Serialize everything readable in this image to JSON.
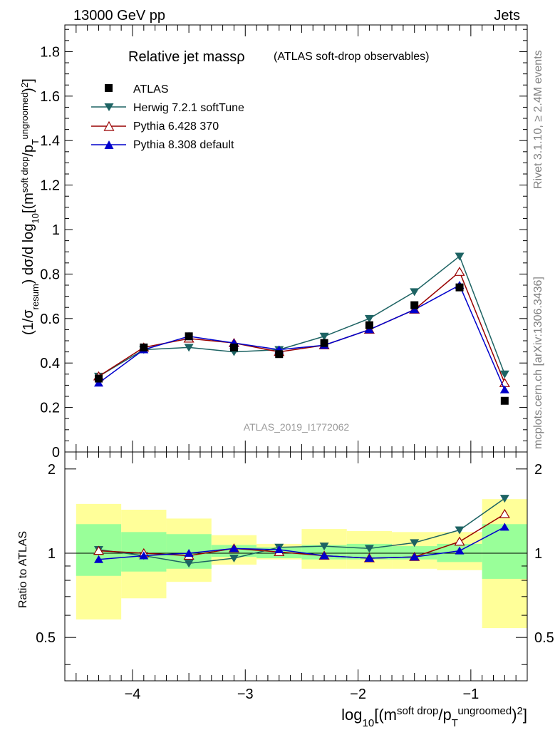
{
  "header": {
    "left": "13000 GeV pp",
    "right": "Jets"
  },
  "side_labels": {
    "rivet": "Rivet 3.1.10, ≥ 2.4M events",
    "mcplots": "mcplots.cern.ch [arXiv:1306.3436]"
  },
  "colors": {
    "atlas": "#000000",
    "herwig": "#1d6363",
    "pythia6": "#990000",
    "pythia8": "#0000cc",
    "band_inner": "#99ff99",
    "band_outer": "#ffff99"
  },
  "chart_data": [
    {
      "type": "line",
      "title": "Relative jet massρ",
      "subtitle": "(ATLAS soft-drop observables)",
      "watermark": "ATLAS_2019_I1772062",
      "ylabel": "(1/σresum) dσ/d log10[(m soft drop/pT ungroomed)2]",
      "xlim": [
        -4.6,
        -0.5
      ],
      "ylim": [
        0,
        1.92
      ],
      "yticks": [
        "0",
        "0.2",
        "0.4",
        "0.6",
        "0.8",
        "1",
        "1.2",
        "1.4",
        "1.6",
        "1.8"
      ],
      "legend_position": "top-left",
      "x": [
        -4.3,
        -3.9,
        -3.5,
        -3.1,
        -2.7,
        -2.3,
        -1.9,
        -1.5,
        -1.1,
        -0.7
      ],
      "series": [
        {
          "name": "ATLAS",
          "marker": "square",
          "values": [
            0.33,
            0.47,
            0.52,
            0.47,
            0.44,
            0.49,
            0.57,
            0.66,
            0.74,
            0.23
          ]
        },
        {
          "name": "Herwig 7.2.1 softTune",
          "marker": "triangle-down",
          "values": [
            0.34,
            0.46,
            0.47,
            0.45,
            0.46,
            0.52,
            0.6,
            0.72,
            0.88,
            0.35
          ]
        },
        {
          "name": "Pythia 6.428 370",
          "marker": "triangle-up-open",
          "values": [
            0.34,
            0.47,
            0.51,
            0.49,
            0.45,
            0.48,
            0.55,
            0.64,
            0.81,
            0.31
          ]
        },
        {
          "name": "Pythia 8.308 default",
          "marker": "triangle-up",
          "values": [
            0.31,
            0.46,
            0.52,
            0.49,
            0.46,
            0.48,
            0.55,
            0.64,
            0.75,
            0.28
          ]
        }
      ]
    },
    {
      "type": "line",
      "ylabel": "Ratio to ATLAS",
      "xlabel": "log10[(m soft drop/pT ungroomed)2]",
      "xlim": [
        -4.6,
        -0.5
      ],
      "ylim": [
        0.35,
        2.3
      ],
      "xticks": [
        "−4",
        "−3",
        "−2",
        "−1"
      ],
      "yticks": [
        "0.5",
        "1",
        "2"
      ],
      "x_edges": [
        -4.5,
        -4.1,
        -3.7,
        -3.3,
        -2.9,
        -2.5,
        -2.1,
        -1.7,
        -1.3,
        -0.9,
        -0.5
      ],
      "band_inner": {
        "lo": [
          0.83,
          0.86,
          0.88,
          0.97,
          0.96,
          0.95,
          0.95,
          0.95,
          0.93,
          0.81
        ],
        "hi": [
          1.27,
          1.19,
          1.17,
          1.07,
          1.05,
          1.07,
          1.08,
          1.06,
          1.08,
          1.27
        ]
      },
      "band_outer": {
        "lo": [
          0.58,
          0.69,
          0.79,
          0.91,
          0.95,
          0.88,
          0.88,
          0.88,
          0.87,
          0.54
        ],
        "hi": [
          1.5,
          1.43,
          1.33,
          1.16,
          1.08,
          1.22,
          1.2,
          1.19,
          1.19,
          1.56
        ]
      },
      "reference": 1,
      "x": [
        -4.3,
        -3.9,
        -3.5,
        -3.1,
        -2.7,
        -2.3,
        -1.9,
        -1.5,
        -1.1,
        -0.7
      ],
      "series": [
        {
          "name": "Herwig 7.2.1 softTune",
          "marker": "triangle-down",
          "values": [
            1.03,
            0.98,
            0.92,
            0.96,
            1.05,
            1.06,
            1.04,
            1.09,
            1.21,
            1.57
          ]
        },
        {
          "name": "Pythia 6.428 370",
          "marker": "triangle-up-open",
          "values": [
            1.02,
            1.0,
            0.98,
            1.04,
            1.01,
            0.98,
            0.96,
            0.97,
            1.1,
            1.38
          ]
        },
        {
          "name": "Pythia 8.308 default",
          "marker": "triangle-up",
          "values": [
            0.95,
            0.98,
            1.0,
            1.04,
            1.03,
            0.98,
            0.96,
            0.97,
            1.02,
            1.24
          ]
        }
      ]
    }
  ]
}
